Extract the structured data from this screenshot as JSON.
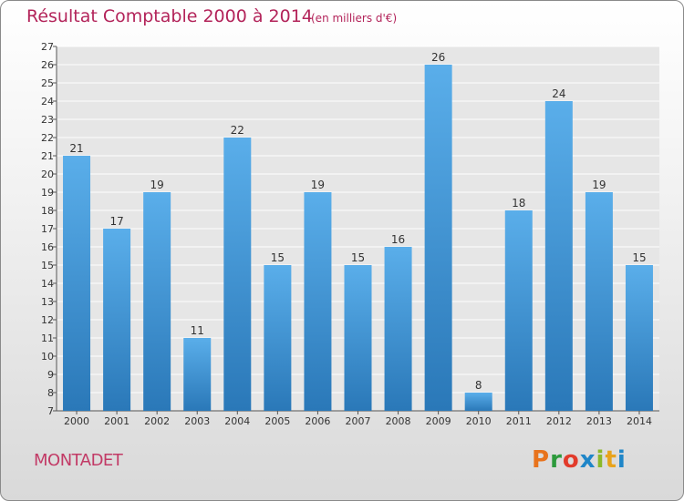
{
  "header": {
    "title": "Résultat Comptable 2000 à 2014",
    "subtitle": "(en milliers d'€)"
  },
  "footer": {
    "commune": "MONTADET",
    "brand": "Proxiti",
    "brand_colors": [
      "#e8731c",
      "#2d9a3c",
      "#e23b2b",
      "#1f86c8",
      "#8cb82a",
      "#e8a31c",
      "#1f86c8"
    ]
  },
  "colors": {
    "bar_light": "#5aaeea",
    "bar_dark": "#2a78b8",
    "title": "#b3245a",
    "gridline": "#ffffff"
  },
  "chart_data": {
    "type": "bar",
    "title": "Résultat Comptable 2000 à 2014",
    "subtitle": "(en milliers d'€)",
    "categories": [
      "2000",
      "2001",
      "2002",
      "2003",
      "2004",
      "2005",
      "2006",
      "2007",
      "2008",
      "2009",
      "2010",
      "2011",
      "2012",
      "2013",
      "2014"
    ],
    "values": [
      21,
      17,
      19,
      11,
      22,
      15,
      19,
      15,
      16,
      26,
      8,
      18,
      24,
      19,
      15
    ],
    "ylim": [
      7,
      27
    ],
    "yticks": [
      7,
      8,
      9,
      10,
      11,
      12,
      13,
      14,
      15,
      16,
      17,
      18,
      19,
      20,
      21,
      22,
      23,
      24,
      25,
      26,
      27
    ],
    "grid": true,
    "data_labels": true
  }
}
